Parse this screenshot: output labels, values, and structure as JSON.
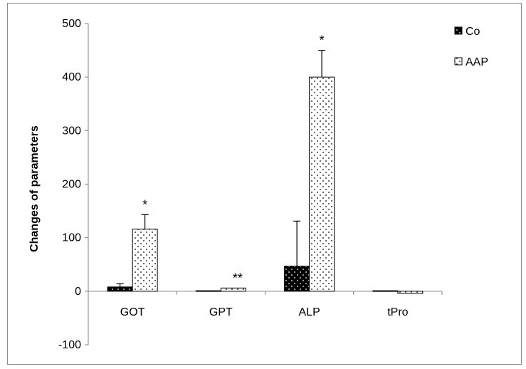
{
  "colors": {
    "co_fill": "#000000",
    "aap_fill": "#ffffff",
    "axis": "#808080",
    "frame": "#8c8c8c"
  },
  "chart_data": {
    "type": "bar",
    "ylabel": "Changes of parameters",
    "xlabel": "",
    "title": "",
    "ylim": [
      -100,
      500
    ],
    "yticks": [
      500,
      400,
      300,
      200,
      100,
      0,
      -100
    ],
    "grid": false,
    "legend_position": "top-right",
    "categories": [
      "GOT",
      "GPT",
      "ALP",
      "tPro"
    ],
    "series": [
      {
        "name": "Co",
        "pattern": "dotted-dark",
        "values": [
          8,
          1,
          47,
          1
        ],
        "errors": [
          6,
          0,
          84,
          0
        ]
      },
      {
        "name": "AAP",
        "pattern": "dotted-light",
        "values": [
          116,
          6,
          400,
          -4
        ],
        "errors": [
          27,
          0,
          50,
          0
        ]
      }
    ],
    "annotations": [
      {
        "category": "GOT",
        "series": "AAP",
        "text": "*"
      },
      {
        "category": "GPT",
        "series": "AAP",
        "text": "**"
      },
      {
        "category": "ALP",
        "series": "AAP",
        "text": "*"
      }
    ]
  }
}
